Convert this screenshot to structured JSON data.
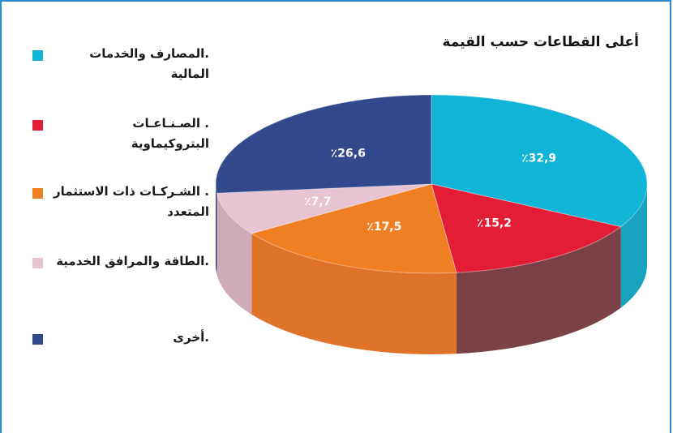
{
  "chart_data": {
    "type": "pie",
    "title": "أعلى القطاعات حسب القيمة",
    "legend_position": "left",
    "slices": [
      {
        "name": ".المصارف والخدمات المالية",
        "value": 32.9,
        "label": "٪32,9",
        "color": "#10b4d6",
        "side_color": "#1aa3be"
      },
      {
        "name": ". الصـنـاعـات البتروكيماوية",
        "value": 15.2,
        "label": "٪15,2",
        "color": "#e31d36",
        "side_color": "#7a4146"
      },
      {
        "name": ". الشـركـات ذات الاستثمار المتعدد",
        "value": 17.5,
        "label": "٪17,5",
        "color": "#f07f24",
        "side_color": "#e0732a"
      },
      {
        "name": ".الطاقة والمرافق الخدمية",
        "value": 7.7,
        "label": "٪7,7",
        "color": "#e8c3d2",
        "side_color": "#cfaab8"
      },
      {
        "name": ".أخرى",
        "value": 26.6,
        "label": "٪26,6",
        "color": "#33498e",
        "side_color": "#283a72"
      }
    ]
  }
}
